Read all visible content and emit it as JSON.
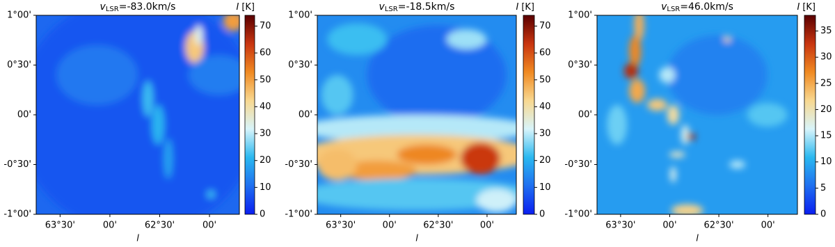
{
  "chart_data": [
    {
      "type": "heatmap",
      "title": {
        "symbol": "v",
        "subscript": "LSR",
        "text": "=-83.0km/s"
      },
      "xlabel": "l",
      "xlim": [
        63.74,
        61.7
      ],
      "xticks": [
        {
          "value": 63.5,
          "label": "63°30'"
        },
        {
          "value": 63,
          "label": "00'"
        },
        {
          "value": 62.5,
          "label": "62°30'"
        },
        {
          "value": 62,
          "label": "00'"
        }
      ],
      "ylim": [
        -1,
        1
      ],
      "yticks": [
        {
          "value": 1,
          "label": "1°00'"
        },
        {
          "value": 0.5,
          "label": "0°30'"
        },
        {
          "value": 0,
          "label": "00'"
        },
        {
          "value": -0.5,
          "label": "-0°30'"
        },
        {
          "value": -1,
          "label": "-1°00'"
        }
      ],
      "colorbar": {
        "label_symbol": "I",
        "label_unit": "[K]",
        "lim": [
          0,
          74
        ],
        "ticks": [
          0,
          10,
          20,
          30,
          40,
          50,
          60,
          70
        ]
      },
      "colormap": [
        "#0a1ef0",
        "#1f6ff0",
        "#2ab8f0",
        "#d8f4fa",
        "#f8d890",
        "#f08a22",
        "#c83510",
        "#5a0000"
      ]
    },
    {
      "type": "heatmap",
      "title": {
        "symbol": "v",
        "subscript": "LSR",
        "text": "=-18.5km/s"
      },
      "xlabel": "l",
      "xlim": [
        63.74,
        61.7
      ],
      "xticks": [
        {
          "value": 63.5,
          "label": "63°30'"
        },
        {
          "value": 63,
          "label": "00'"
        },
        {
          "value": 62.5,
          "label": "62°30'"
        },
        {
          "value": 62,
          "label": "00'"
        }
      ],
      "ylim": [
        -1,
        1
      ],
      "yticks": [
        {
          "value": 1,
          "label": "1°00'"
        },
        {
          "value": 0.5,
          "label": "0°30'"
        },
        {
          "value": 0,
          "label": "00'"
        },
        {
          "value": -0.5,
          "label": "-0°30'"
        },
        {
          "value": -1,
          "label": "-1°00'"
        }
      ],
      "colorbar": {
        "label_symbol": "I",
        "label_unit": "[K]",
        "lim": [
          0,
          74
        ],
        "ticks": [
          0,
          10,
          20,
          30,
          40,
          50,
          60,
          70
        ]
      },
      "colormap": [
        "#0a1ef0",
        "#1f6ff0",
        "#2ab8f0",
        "#d8f4fa",
        "#f8d890",
        "#f08a22",
        "#c83510",
        "#5a0000"
      ]
    },
    {
      "type": "heatmap",
      "title": {
        "symbol": "v",
        "subscript": "LSR",
        "text": "=46.0km/s"
      },
      "xlabel": "l",
      "xlim": [
        63.74,
        61.7
      ],
      "xticks": [
        {
          "value": 63.5,
          "label": "63°30'"
        },
        {
          "value": 63,
          "label": "00'"
        },
        {
          "value": 62.5,
          "label": "62°30'"
        },
        {
          "value": 62,
          "label": "00'"
        }
      ],
      "ylim": [
        -1,
        1
      ],
      "yticks": [
        {
          "value": 1,
          "label": "1°00'"
        },
        {
          "value": 0.5,
          "label": "0°30'"
        },
        {
          "value": 0,
          "label": "00'"
        },
        {
          "value": -0.5,
          "label": "-0°30'"
        },
        {
          "value": -1,
          "label": "-1°00'"
        }
      ],
      "colorbar": {
        "label_symbol": "I",
        "label_unit": "[K]",
        "lim": [
          0,
          38
        ],
        "ticks": [
          0,
          5,
          10,
          15,
          20,
          25,
          30,
          35
        ]
      },
      "colormap": [
        "#0a1ef0",
        "#1f6ff0",
        "#2ab8f0",
        "#d8f4fa",
        "#f8d890",
        "#f08a22",
        "#c83510",
        "#5a0000"
      ]
    }
  ]
}
